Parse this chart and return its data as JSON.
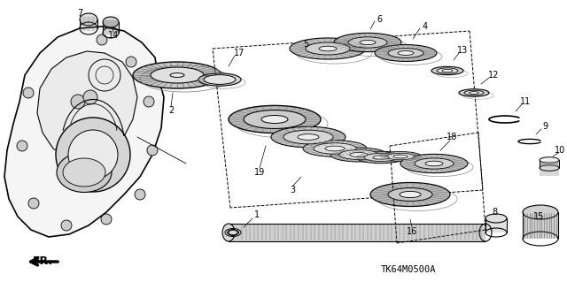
{
  "background_color": "#ffffff",
  "diagram_code_text": "TK64M0500A",
  "figsize": [
    6.4,
    3.19
  ],
  "dpi": 100,
  "black": "#000000",
  "gray": "#888888",
  "darkgray": "#444444"
}
